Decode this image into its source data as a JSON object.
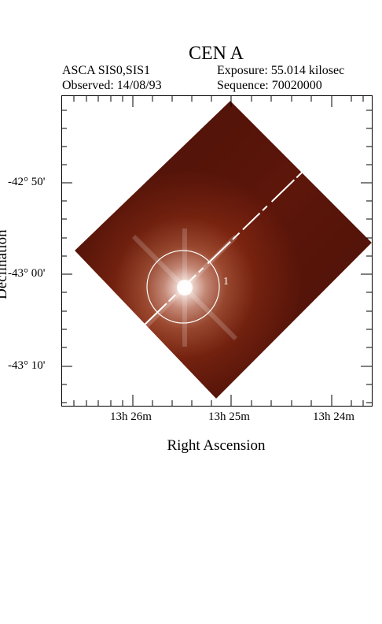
{
  "title": "CEN A",
  "header": {
    "instrument": "ASCA SIS0,SIS1",
    "observed": "Observed: 14/08/93",
    "exposure": "Exposure: 55.014 kilosec",
    "sequence": "Sequence: 70020000"
  },
  "axes": {
    "xlabel": "Right Ascension",
    "ylabel": "Declination",
    "x_ticks": [
      "13h 26m",
      "13h 25m",
      "13h 24m"
    ],
    "y_ticks": [
      "-42° 50'",
      "-43° 00'",
      "-43° 10'"
    ]
  },
  "source": {
    "id": "1"
  },
  "colors": {
    "image_dark": "#5a1208",
    "image_mid": "#8a2a14",
    "core": "#ffffff",
    "circle": "#ffffff"
  }
}
